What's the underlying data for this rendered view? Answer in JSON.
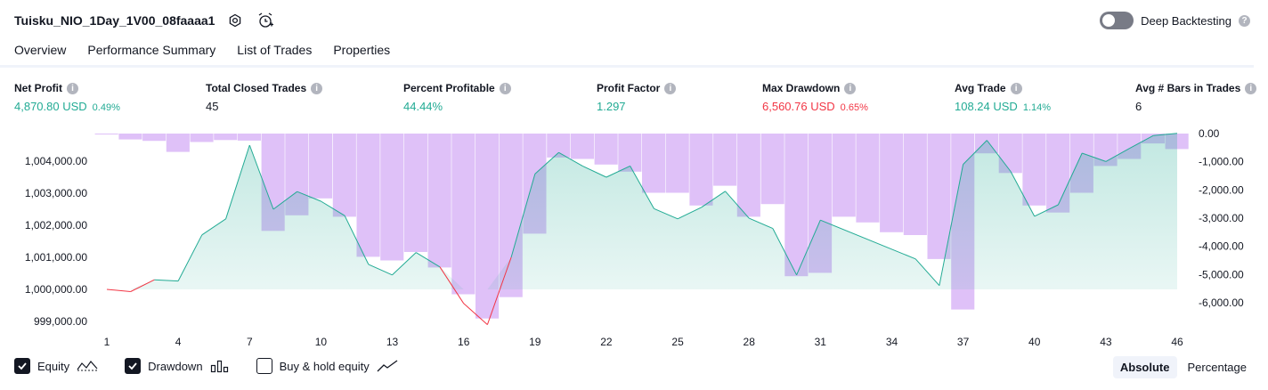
{
  "header": {
    "strategy_name": "Tuisku_NIO_1Day_1V00_08faaaa1",
    "settings_icon": "gear-icon",
    "alert_icon": "alarm-clock-plus-icon",
    "deep_backtesting_label": "Deep Backtesting",
    "deep_backtesting_enabled": false
  },
  "tabs": [
    {
      "label": "Overview",
      "active": true
    },
    {
      "label": "Performance Summary",
      "active": false
    },
    {
      "label": "List of Trades",
      "active": false
    },
    {
      "label": "Properties",
      "active": false
    }
  ],
  "stats": [
    {
      "label": "Net Profit",
      "value": "4,870.80 USD",
      "pct": "0.49%",
      "color": "#22ab94"
    },
    {
      "label": "Total Closed Trades",
      "value": "45",
      "pct": "",
      "color": "#131722"
    },
    {
      "label": "Percent Profitable",
      "value": "44.44%",
      "pct": "",
      "color": "#22ab94"
    },
    {
      "label": "Profit Factor",
      "value": "1.297",
      "pct": "",
      "color": "#22ab94"
    },
    {
      "label": "Max Drawdown",
      "value": "6,560.76 USD",
      "pct": "0.65%",
      "color": "#f23645"
    },
    {
      "label": "Avg Trade",
      "value": "108.24 USD",
      "pct": "1.14%",
      "color": "#22ab94"
    },
    {
      "label": "Avg # Bars in Trades",
      "value": "6",
      "pct": "",
      "color": "#131722"
    }
  ],
  "chart_data": {
    "type": "line",
    "x_ticks": [
      "1",
      "4",
      "7",
      "10",
      "13",
      "16",
      "19",
      "22",
      "25",
      "28",
      "31",
      "34",
      "37",
      "40",
      "43",
      "46"
    ],
    "left_axis": {
      "ticks": [
        "1,004,000.00",
        "1,003,000.00",
        "1,002,000.00",
        "1,001,000.00",
        "1,000,000.00",
        "999,000.00"
      ],
      "tick_values": [
        1004000,
        1003000,
        1002000,
        1001000,
        1000000,
        999000
      ],
      "ylim": [
        998500,
        1004800
      ]
    },
    "right_axis": {
      "ticks": [
        "0.00",
        "-1,000.00",
        "-2,000.00",
        "-3,000.00",
        "-4,000.00",
        "-5,000.00",
        "-6,000.00"
      ],
      "tick_values": [
        0,
        -1000,
        -2000,
        -3000,
        -4000,
        -5000,
        -6000
      ],
      "ylim": [
        -6800,
        0
      ]
    },
    "series": [
      {
        "name": "Equity",
        "kind": "line-area",
        "color": "#22ab94",
        "negative_color": "#f23645",
        "baseline": 1000000,
        "x": [
          1,
          2,
          3,
          4,
          5,
          6,
          7,
          8,
          9,
          10,
          11,
          12,
          13,
          14,
          15,
          16,
          17,
          18,
          19,
          20,
          21,
          22,
          23,
          24,
          25,
          26,
          27,
          28,
          29,
          30,
          31,
          35,
          36,
          37,
          38,
          39,
          40,
          41,
          42,
          43,
          44,
          45,
          46
        ],
        "values": [
          1000000,
          999930,
          1000300,
          1000260,
          1001700,
          1002200,
          1004500,
          1002500,
          1003050,
          1002750,
          1002300,
          1000780,
          1000450,
          1001150,
          1000700,
          999560,
          998900,
          1001000,
          1003600,
          1004270,
          1003850,
          1003500,
          1003850,
          1002520,
          1002200,
          1002560,
          1003060,
          1002220,
          1001900,
          1000450,
          1002160,
          1000950,
          1000120,
          1003900,
          1004650,
          1003680,
          1002280,
          1002640,
          1004250,
          1003990,
          1004400,
          1004800,
          1004870
        ]
      },
      {
        "name": "Drawdown",
        "kind": "bars",
        "color": "#d1a6f5",
        "x": [
          1,
          2,
          3,
          4,
          5,
          6,
          7,
          8,
          9,
          10,
          11,
          12,
          13,
          14,
          15,
          16,
          17,
          18,
          19,
          20,
          21,
          22,
          23,
          24,
          25,
          26,
          27,
          28,
          29,
          30,
          31,
          32,
          33,
          34,
          35,
          36,
          37,
          38,
          39,
          40,
          41,
          42,
          43,
          44,
          45,
          46
        ],
        "values": [
          -30,
          -210,
          -260,
          -650,
          -300,
          -230,
          -250,
          -3450,
          -2900,
          -2300,
          -2950,
          -4370,
          -4500,
          -4200,
          -4750,
          -5700,
          -6560,
          -5800,
          -3550,
          -850,
          -900,
          -1100,
          -1350,
          -2100,
          -2100,
          -2550,
          -1850,
          -2950,
          -2500,
          -5060,
          -4940,
          -2950,
          -3150,
          -3500,
          -3600,
          -4450,
          -6240,
          -700,
          -1400,
          -2550,
          -2800,
          -2100,
          -1150,
          -900,
          -350,
          -550
        ]
      }
    ]
  },
  "legend": [
    {
      "label": "Equity",
      "checked": true,
      "icon": "equity-line-icon"
    },
    {
      "label": "Drawdown",
      "checked": true,
      "icon": "drawdown-bars-icon"
    },
    {
      "label": "Buy & hold equity",
      "checked": false,
      "icon": "trend-line-icon"
    }
  ],
  "modes": [
    {
      "label": "Absolute",
      "active": true
    },
    {
      "label": "Percentage",
      "active": false
    }
  ]
}
